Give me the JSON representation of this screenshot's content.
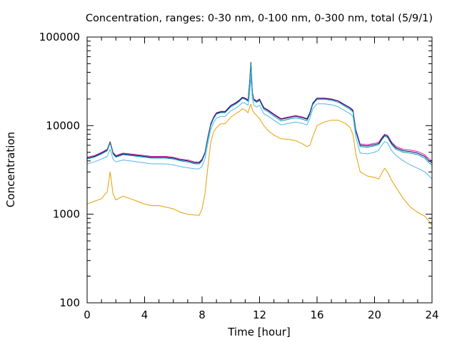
{
  "chart_data": {
    "type": "line",
    "title": "Concentration, ranges: 0-30 nm, 0-100 nm, 0-300 nm, total (5/9/1)",
    "xlabel": "Time [hour]",
    "ylabel": "Concentration",
    "xlim": [
      0,
      24
    ],
    "ylim": [
      100,
      100000
    ],
    "yscale": "log",
    "grid": false,
    "legend": "none",
    "xticks": [
      0,
      4,
      8,
      12,
      16,
      20,
      24
    ],
    "xtick_labels": [
      "0",
      "4",
      "8",
      "12",
      "16",
      "20",
      "24"
    ],
    "yticks": [
      100,
      1000,
      10000,
      100000
    ],
    "ytick_labels": [
      "100",
      "1000",
      "10000",
      "100000"
    ],
    "x": [
      0,
      0.5,
      1.0,
      1.4,
      1.6,
      1.7,
      1.8,
      2.0,
      2.5,
      3.0,
      3.5,
      4.0,
      4.5,
      5.0,
      5.5,
      6.0,
      6.5,
      7.0,
      7.5,
      7.8,
      8.0,
      8.2,
      8.4,
      8.6,
      8.8,
      9.0,
      9.3,
      9.6,
      10.0,
      10.3,
      10.6,
      10.8,
      11.0,
      11.2,
      11.3,
      11.4,
      11.5,
      11.6,
      11.8,
      12.0,
      12.3,
      12.6,
      13.0,
      13.5,
      14.0,
      14.5,
      15.0,
      15.3,
      15.5,
      15.7,
      16.0,
      16.5,
      17.0,
      17.5,
      18.0,
      18.3,
      18.5,
      18.7,
      19.0,
      19.5,
      20.0,
      20.3,
      20.5,
      20.7,
      20.9,
      21.2,
      21.5,
      22.0,
      22.5,
      23.0,
      23.5,
      23.8,
      24.0
    ],
    "series": [
      {
        "color": "#e02090",
        "values": [
          4400,
          4600,
          5000,
          5400,
          6600,
          5800,
          5000,
          4600,
          4900,
          4800,
          4700,
          4600,
          4500,
          4500,
          4500,
          4400,
          4200,
          4100,
          3900,
          3900,
          4200,
          5000,
          7500,
          10500,
          12500,
          14000,
          14500,
          14500,
          17000,
          18000,
          19500,
          21000,
          20500,
          19500,
          30000,
          52000,
          24000,
          20000,
          19000,
          20000,
          16000,
          15000,
          13500,
          12000,
          12500,
          13000,
          12500,
          12000,
          14000,
          18000,
          20500,
          20500,
          20000,
          19000,
          17000,
          16000,
          15000,
          9000,
          6200,
          6100,
          6300,
          6500,
          7300,
          8000,
          7800,
          6500,
          5800,
          5400,
          5300,
          5100,
          4700,
          4200,
          4000
        ]
      },
      {
        "color": "#000080",
        "values": [
          4300,
          4500,
          4900,
          5300,
          6500,
          5700,
          4900,
          4500,
          4800,
          4700,
          4600,
          4500,
          4400,
          4400,
          4400,
          4300,
          4100,
          4000,
          3800,
          3800,
          4100,
          4900,
          7300,
          10300,
          12300,
          13800,
          14300,
          14300,
          16800,
          17800,
          19300,
          20800,
          20300,
          19300,
          29000,
          51000,
          23500,
          19700,
          18800,
          19700,
          15800,
          14800,
          13300,
          11800,
          12300,
          12800,
          12300,
          11800,
          13800,
          17800,
          20300,
          20300,
          19800,
          18800,
          16800,
          15800,
          14800,
          8800,
          6000,
          5900,
          6100,
          6300,
          7100,
          7800,
          7600,
          6300,
          5600,
          5200,
          5100,
          4900,
          4500,
          4000,
          3800
        ]
      },
      {
        "color": "#009e9e",
        "values": [
          4200,
          4400,
          4800,
          5200,
          6400,
          5600,
          4800,
          4400,
          4700,
          4600,
          4500,
          4400,
          4300,
          4300,
          4300,
          4200,
          4000,
          3900,
          3700,
          3700,
          4000,
          4800,
          7100,
          10000,
          12000,
          13500,
          14000,
          14000,
          16300,
          17300,
          18800,
          20300,
          19800,
          18800,
          28000,
          50000,
          23000,
          19200,
          18300,
          19200,
          15300,
          14300,
          12800,
          11300,
          11800,
          12300,
          11800,
          11300,
          13300,
          17300,
          19800,
          19800,
          19300,
          18300,
          16300,
          15300,
          14300,
          8500,
          5800,
          5700,
          5900,
          6100,
          6900,
          7600,
          7400,
          6100,
          5400,
          5000,
          4900,
          4700,
          4300,
          3800,
          3600
        ]
      },
      {
        "color": "#56b4e9",
        "values": [
          3700,
          3900,
          4200,
          4500,
          5400,
          4800,
          4200,
          3900,
          4100,
          4000,
          3900,
          3800,
          3700,
          3700,
          3700,
          3600,
          3450,
          3350,
          3250,
          3250,
          3500,
          4200,
          6300,
          9000,
          10800,
          12200,
          12700,
          12700,
          14700,
          15600,
          16900,
          18200,
          17800,
          17000,
          22000,
          35000,
          20000,
          17000,
          16200,
          17000,
          13600,
          12800,
          11500,
          10200,
          10600,
          11000,
          10600,
          10200,
          12000,
          15500,
          17600,
          17600,
          17200,
          16300,
          14500,
          13600,
          12700,
          7400,
          4900,
          4800,
          5000,
          5300,
          6000,
          6600,
          6400,
          5200,
          4600,
          4000,
          3600,
          3300,
          3000,
          2700,
          2500
        ]
      },
      {
        "color": "#e69f00",
        "values": [
          1300,
          1400,
          1500,
          1800,
          3000,
          2300,
          1700,
          1450,
          1600,
          1500,
          1400,
          1300,
          1250,
          1250,
          1200,
          1150,
          1050,
          1000,
          980,
          970,
          1150,
          1700,
          3400,
          6500,
          8500,
          9500,
          10500,
          10500,
          12500,
          13500,
          14500,
          15500,
          15000,
          14000,
          16000,
          17500,
          15000,
          14000,
          13000,
          12000,
          10000,
          8800,
          7800,
          7100,
          7000,
          6800,
          6200,
          5800,
          6000,
          7500,
          10000,
          11000,
          11500,
          11500,
          10500,
          9500,
          8000,
          4800,
          3000,
          2700,
          2600,
          2500,
          2900,
          3300,
          3000,
          2400,
          2000,
          1500,
          1200,
          1050,
          950,
          830,
          750
        ]
      }
    ]
  }
}
